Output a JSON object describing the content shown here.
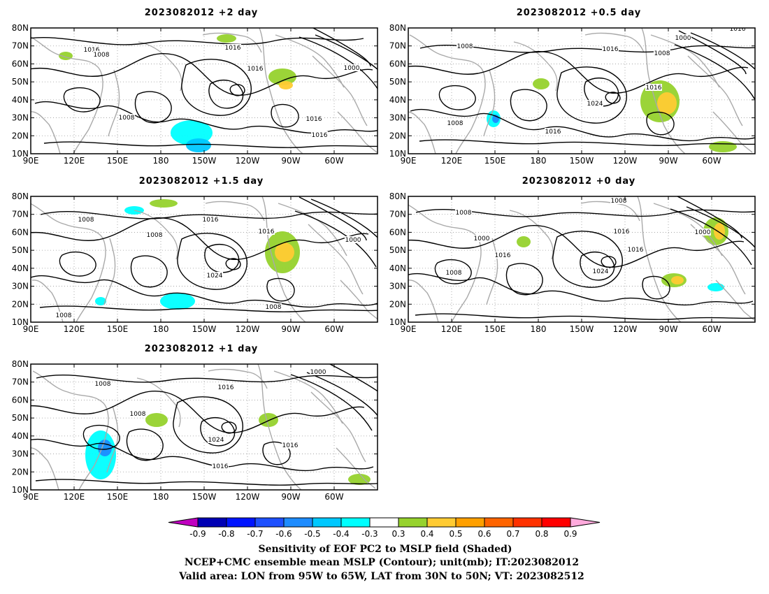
{
  "figure": {
    "panels": [
      {
        "title": "2023082012 +2 day",
        "contour_labels": [
          "1016",
          "1008",
          "1016",
          "1016",
          "1000",
          "1016",
          "1016",
          "1008"
        ]
      },
      {
        "title": "2023082012 +0.5 day",
        "contour_labels": [
          "1016",
          "1000",
          "1008",
          "1016",
          "1008",
          "1016",
          "1024",
          "1008",
          "1016"
        ]
      },
      {
        "title": "2023082012 +1.5 day",
        "contour_labels": [
          "1008",
          "1016",
          "1008",
          "1016",
          "1000",
          "1024",
          "1008",
          "1008"
        ]
      },
      {
        "title": "2023082012 +0 day",
        "contour_labels": [
          "1008",
          "1008",
          "1000",
          "1016",
          "1000",
          "1016",
          "1016",
          "1024",
          "1008"
        ]
      },
      {
        "title": "2023082012 +1 day",
        "contour_labels": [
          "1000",
          "1008",
          "1016",
          "1008",
          "1024",
          "1016",
          "1016"
        ]
      }
    ],
    "y_ticks": [
      "80N",
      "70N",
      "60N",
      "50N",
      "40N",
      "30N",
      "20N",
      "10N"
    ],
    "x_ticks": [
      "90E",
      "120E",
      "150E",
      "180",
      "150W",
      "120W",
      "90W",
      "60W"
    ],
    "colorbar": {
      "labels": [
        "-0.9",
        "-0.8",
        "-0.7",
        "-0.6",
        "-0.5",
        "-0.4",
        "-0.3",
        "0.3",
        "0.4",
        "0.5",
        "0.6",
        "0.7",
        "0.8",
        "0.9"
      ],
      "colors": [
        "#c000c0",
        "#0000b4",
        "#0014ff",
        "#1e50ff",
        "#1e8cff",
        "#00c8ff",
        "#00ffff",
        "#ffffff",
        "#96d22d",
        "#ffcb33",
        "#ffa000",
        "#ff6400",
        "#ff3200",
        "#ff0000",
        "#ffaadc"
      ]
    },
    "footer": [
      "Sensitivity of EOF PC2 to MSLP field (Shaded)",
      "NCEP+CMC ensemble mean MSLP (Contour); unit(mb); IT:2023082012",
      "Valid area: LON from 95W to 65W, LAT from 30N to 50N; VT: 2023082512"
    ]
  }
}
